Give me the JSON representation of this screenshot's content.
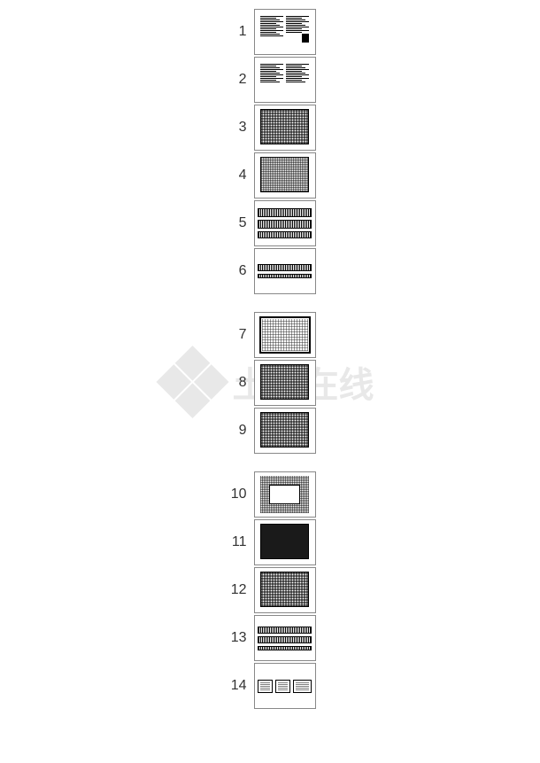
{
  "watermark_text": "土木在线",
  "thumbnails": [
    {
      "number": "1",
      "type": "text-doc",
      "gap_after": false
    },
    {
      "number": "2",
      "type": "text-doc-2",
      "gap_after": false
    },
    {
      "number": "3",
      "type": "grid-plan-med",
      "gap_after": false
    },
    {
      "number": "4",
      "type": "grid-plan-light",
      "gap_after": false
    },
    {
      "number": "5",
      "type": "bands-3",
      "gap_after": false
    },
    {
      "number": "6",
      "type": "bands-2",
      "gap_after": true
    },
    {
      "number": "7",
      "type": "grid-border-light",
      "gap_after": false
    },
    {
      "number": "8",
      "type": "grid-plan-med",
      "gap_after": false
    },
    {
      "number": "9",
      "type": "grid-plan-med",
      "gap_after": true
    },
    {
      "number": "10",
      "type": "open-center",
      "gap_after": false
    },
    {
      "number": "11",
      "type": "grid-dense",
      "gap_after": false
    },
    {
      "number": "12",
      "type": "grid-plan-med",
      "gap_after": false
    },
    {
      "number": "13",
      "type": "bands-3-thin",
      "gap_after": false
    },
    {
      "number": "14",
      "type": "details",
      "gap_after": false
    }
  ],
  "colors": {
    "background": "#ffffff",
    "border": "#888888",
    "text": "#333333",
    "watermark": "#e8e8e8",
    "drawing": "#000000"
  }
}
